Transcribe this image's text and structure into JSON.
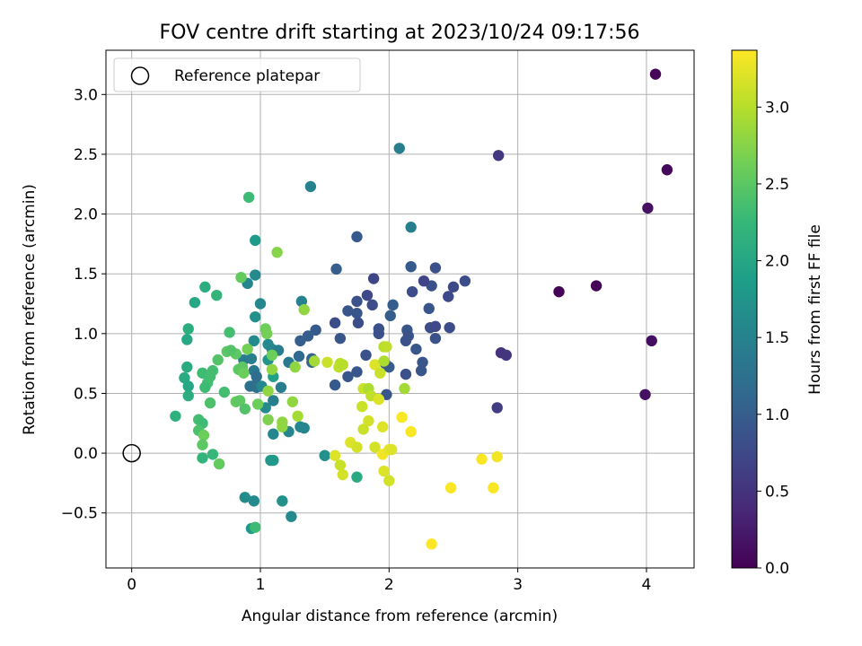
{
  "chart_data": {
    "type": "scatter",
    "title": "FOV centre drift starting at 2023/10/24 09:17:56",
    "xlabel": "Angular distance from reference (arcmin)",
    "ylabel": "Rotation from reference (arcmin)",
    "xlim": [
      -0.2,
      4.37
    ],
    "ylim": [
      -0.96,
      3.37
    ],
    "xticks": [
      0,
      1,
      2,
      3,
      4
    ],
    "xtick_labels": [
      "0",
      "1",
      "2",
      "3",
      "4"
    ],
    "yticks": [
      -0.5,
      0.0,
      0.5,
      1.0,
      1.5,
      2.0,
      2.5,
      3.0
    ],
    "ytick_labels": [
      "−0.5",
      "0.0",
      "0.5",
      "1.0",
      "1.5",
      "2.0",
      "2.5",
      "3.0"
    ],
    "grid": true,
    "legend": {
      "placement": "top-left",
      "entries": [
        "Reference platepar"
      ]
    },
    "reference_point": {
      "x": 0.0,
      "y": 0.0,
      "label": "Reference platepar"
    },
    "colorbar": {
      "label": "Hours from first FF file",
      "min": 0.0,
      "max": 3.37,
      "ticks": [
        0.0,
        0.5,
        1.0,
        1.5,
        2.0,
        2.5,
        3.0
      ],
      "tick_labels": [
        "0.0",
        "0.5",
        "1.0",
        "1.5",
        "2.0",
        "2.5",
        "3.0"
      ],
      "colormap": "viridis",
      "stops": [
        "#440154",
        "#482878",
        "#3e4989",
        "#31688e",
        "#26828e",
        "#1f9e89",
        "#35b779",
        "#6ece58",
        "#b5de2b",
        "#fde725"
      ]
    },
    "series": [
      {
        "points": [
          [
            4.07,
            3.17,
            0.05
          ],
          [
            4.16,
            2.37,
            0.08
          ],
          [
            4.01,
            2.05,
            0.15
          ],
          [
            3.32,
            1.35,
            0.03
          ],
          [
            3.61,
            1.4,
            0.02
          ],
          [
            4.04,
            0.94,
            0.12
          ],
          [
            3.99,
            0.49,
            0.14
          ],
          [
            2.85,
            2.49,
            0.55
          ],
          [
            2.87,
            0.84,
            0.5
          ],
          [
            2.91,
            0.82,
            0.52
          ],
          [
            2.84,
            0.38,
            0.6
          ],
          [
            2.08,
            2.55,
            1.45
          ],
          [
            1.39,
            2.23,
            1.5
          ],
          [
            2.17,
            1.89,
            1.45
          ],
          [
            1.75,
            1.81,
            0.95
          ],
          [
            2.17,
            1.56,
            0.95
          ],
          [
            1.59,
            1.54,
            1.0
          ],
          [
            2.36,
            1.55,
            0.85
          ],
          [
            2.59,
            1.44,
            0.8
          ],
          [
            2.33,
            1.4,
            0.85
          ],
          [
            2.5,
            1.39,
            0.75
          ],
          [
            2.27,
            1.44,
            0.7
          ],
          [
            2.18,
            1.35,
            0.8
          ],
          [
            1.88,
            1.46,
            0.7
          ],
          [
            1.83,
            1.32,
            0.75
          ],
          [
            1.75,
            1.27,
            0.85
          ],
          [
            1.68,
            1.19,
            0.9
          ],
          [
            1.87,
            1.24,
            0.8
          ],
          [
            2.03,
            1.24,
            1.0
          ],
          [
            2.01,
            1.15,
            1.0
          ],
          [
            2.31,
            1.21,
            0.9
          ],
          [
            2.46,
            1.31,
            0.75
          ],
          [
            2.32,
            1.05,
            0.8
          ],
          [
            2.36,
            1.06,
            0.75
          ],
          [
            2.47,
            1.05,
            0.8
          ],
          [
            2.14,
            1.03,
            0.9
          ],
          [
            2.15,
            0.98,
            0.85
          ],
          [
            2.13,
            0.94,
            0.85
          ],
          [
            2.36,
            0.96,
            0.85
          ],
          [
            2.21,
            0.87,
            0.9
          ],
          [
            2.26,
            0.76,
            0.9
          ],
          [
            2.13,
            0.66,
            0.85
          ],
          [
            2.25,
            0.69,
            0.9
          ],
          [
            1.58,
            1.09,
            0.8
          ],
          [
            1.76,
            1.09,
            0.8
          ],
          [
            1.62,
            0.96,
            0.9
          ],
          [
            1.82,
            0.82,
            0.85
          ],
          [
            1.75,
            0.68,
            0.9
          ],
          [
            1.68,
            0.64,
            0.9
          ],
          [
            1.58,
            0.57,
            0.95
          ],
          [
            1.43,
            1.03,
            0.95
          ],
          [
            1.37,
            0.98,
            1.0
          ],
          [
            1.31,
            0.94,
            1.0
          ],
          [
            1.4,
            0.79,
            1.1
          ],
          [
            1.4,
            0.76,
            1.1
          ],
          [
            1.32,
            1.27,
            1.5
          ],
          [
            1.3,
            0.81,
            1.15
          ],
          [
            1.98,
            0.49,
            0.9
          ],
          [
            2.0,
            0.72,
            1.0
          ],
          [
            1.97,
            0.75,
            0.9
          ],
          [
            1.75,
            1.17,
            0.9
          ],
          [
            1.92,
            1.0,
            0.85
          ],
          [
            1.92,
            1.04,
            0.85
          ],
          [
            0.96,
            1.78,
            1.85
          ],
          [
            0.96,
            1.49,
            1.6
          ],
          [
            0.9,
            1.42,
            1.55
          ],
          [
            1.0,
            1.25,
            1.55
          ],
          [
            0.96,
            1.14,
            1.7
          ],
          [
            0.95,
            0.94,
            1.6
          ],
          [
            0.93,
            0.79,
            1.45
          ],
          [
            0.87,
            0.78,
            1.4
          ],
          [
            0.95,
            0.69,
            1.35
          ],
          [
            0.97,
            0.64,
            1.2
          ],
          [
            0.92,
            0.56,
            1.25
          ],
          [
            0.96,
            0.57,
            1.25
          ],
          [
            0.97,
            0.55,
            1.25
          ],
          [
            1.01,
            0.56,
            1.55
          ],
          [
            1.06,
            0.91,
            1.6
          ],
          [
            1.09,
            0.87,
            1.55
          ],
          [
            1.14,
            0.86,
            1.45
          ],
          [
            1.06,
            0.78,
            1.75
          ],
          [
            1.1,
            0.64,
            1.9
          ],
          [
            1.16,
            0.55,
            1.4
          ],
          [
            1.1,
            0.44,
            1.45
          ],
          [
            1.22,
            0.76,
            1.35
          ],
          [
            1.04,
            0.38,
            1.6
          ],
          [
            1.1,
            0.16,
            1.55
          ],
          [
            1.22,
            0.18,
            1.55
          ],
          [
            1.31,
            0.22,
            1.55
          ],
          [
            1.34,
            0.21,
            1.55
          ],
          [
            1.5,
            -0.02,
            1.7
          ],
          [
            1.75,
            -0.2,
            2.05
          ],
          [
            1.08,
            -0.06,
            1.8
          ],
          [
            1.1,
            -0.06,
            1.8
          ],
          [
            0.88,
            -0.37,
            1.65
          ],
          [
            0.95,
            -0.4,
            1.6
          ],
          [
            1.17,
            -0.4,
            1.7
          ],
          [
            1.24,
            -0.53,
            1.6
          ],
          [
            0.93,
            -0.63,
            1.8
          ],
          [
            0.96,
            -0.62,
            2.3
          ],
          [
            0.91,
            2.14,
            2.3
          ],
          [
            0.57,
            1.39,
            2.1
          ],
          [
            0.49,
            1.26,
            2.0
          ],
          [
            0.66,
            1.32,
            2.2
          ],
          [
            0.44,
            1.04,
            2.1
          ],
          [
            0.43,
            0.95,
            2.0
          ],
          [
            0.41,
            0.63,
            2.05
          ],
          [
            0.43,
            0.72,
            2.05
          ],
          [
            0.44,
            0.48,
            2.1
          ],
          [
            0.44,
            0.56,
            2.0
          ],
          [
            0.55,
            0.67,
            2.3
          ],
          [
            0.61,
            0.64,
            2.35
          ],
          [
            0.63,
            0.69,
            2.35
          ],
          [
            0.59,
            0.59,
            2.35
          ],
          [
            0.57,
            0.55,
            2.3
          ],
          [
            0.61,
            0.42,
            2.4
          ],
          [
            0.34,
            0.31,
            2.15
          ],
          [
            0.52,
            0.28,
            2.35
          ],
          [
            0.55,
            0.25,
            2.3
          ],
          [
            0.52,
            0.19,
            2.4
          ],
          [
            0.56,
            0.15,
            2.6
          ],
          [
            0.55,
            0.07,
            2.5
          ],
          [
            0.55,
            -0.04,
            2.2
          ],
          [
            0.63,
            -0.01,
            2.25
          ],
          [
            0.68,
            -0.09,
            2.55
          ],
          [
            0.67,
            0.78,
            2.45
          ],
          [
            0.76,
            1.01,
            2.35
          ],
          [
            0.74,
            0.85,
            2.5
          ],
          [
            0.81,
            0.83,
            2.5
          ],
          [
            0.77,
            0.86,
            2.45
          ],
          [
            0.83,
            0.7,
            2.5
          ],
          [
            0.86,
            0.72,
            2.5
          ],
          [
            0.87,
            0.67,
            2.6
          ],
          [
            0.81,
            0.43,
            2.55
          ],
          [
            0.84,
            0.44,
            2.5
          ],
          [
            0.88,
            0.37,
            2.45
          ],
          [
            0.72,
            0.51,
            2.35
          ],
          [
            0.85,
            1.47,
            2.55
          ],
          [
            0.9,
            0.87,
            2.65
          ],
          [
            0.98,
            0.41,
            2.6
          ],
          [
            1.04,
            1.04,
            2.6
          ],
          [
            1.05,
            1.0,
            2.65
          ],
          [
            1.09,
            0.7,
            2.8
          ],
          [
            1.09,
            0.82,
            2.6
          ],
          [
            1.06,
            0.52,
            2.8
          ],
          [
            1.06,
            0.28,
            2.7
          ],
          [
            1.17,
            0.26,
            2.8
          ],
          [
            1.17,
            0.22,
            2.8
          ],
          [
            1.25,
            0.43,
            2.8
          ],
          [
            1.29,
            0.31,
            2.9
          ],
          [
            1.13,
            1.68,
            2.75
          ],
          [
            1.34,
            1.2,
            2.8
          ],
          [
            1.27,
            0.72,
            2.8
          ],
          [
            1.42,
            0.77,
            2.9
          ],
          [
            1.52,
            0.76,
            3.1
          ],
          [
            1.62,
            0.75,
            3.0
          ],
          [
            1.61,
            0.72,
            3.05
          ],
          [
            1.64,
            0.74,
            3.0
          ],
          [
            1.8,
            0.54,
            3.1
          ],
          [
            1.84,
            0.54,
            2.95
          ],
          [
            1.86,
            0.48,
            3.05
          ],
          [
            1.8,
            0.2,
            3.1
          ],
          [
            1.79,
            0.39,
            3.1
          ],
          [
            1.84,
            0.27,
            3.15
          ],
          [
            1.89,
            0.74,
            3.2
          ],
          [
            1.93,
            0.67,
            3.1
          ],
          [
            1.92,
            0.45,
            3.2
          ],
          [
            1.96,
            0.77,
            2.95
          ],
          [
            1.96,
            0.89,
            3.0
          ],
          [
            1.98,
            0.89,
            3.05
          ],
          [
            1.95,
            0.22,
            3.2
          ],
          [
            1.7,
            0.09,
            3.2
          ],
          [
            1.75,
            0.05,
            3.15
          ],
          [
            1.89,
            0.05,
            3.15
          ],
          [
            1.95,
            -0.01,
            3.3
          ],
          [
            2.0,
            0.03,
            3.25
          ],
          [
            2.02,
            0.03,
            3.2
          ],
          [
            2.1,
            0.3,
            3.35
          ],
          [
            2.17,
            0.18,
            3.35
          ],
          [
            2.12,
            0.54,
            2.9
          ],
          [
            1.58,
            -0.02,
            3.2
          ],
          [
            1.62,
            -0.1,
            3.1
          ],
          [
            1.64,
            -0.18,
            3.15
          ],
          [
            1.96,
            -0.15,
            3.2
          ],
          [
            2.0,
            -0.23,
            3.15
          ],
          [
            2.48,
            -0.29,
            3.35
          ],
          [
            2.72,
            -0.05,
            3.35
          ],
          [
            2.84,
            -0.03,
            3.3
          ],
          [
            2.81,
            -0.29,
            3.35
          ],
          [
            2.33,
            -0.76,
            3.37
          ]
        ]
      }
    ]
  }
}
